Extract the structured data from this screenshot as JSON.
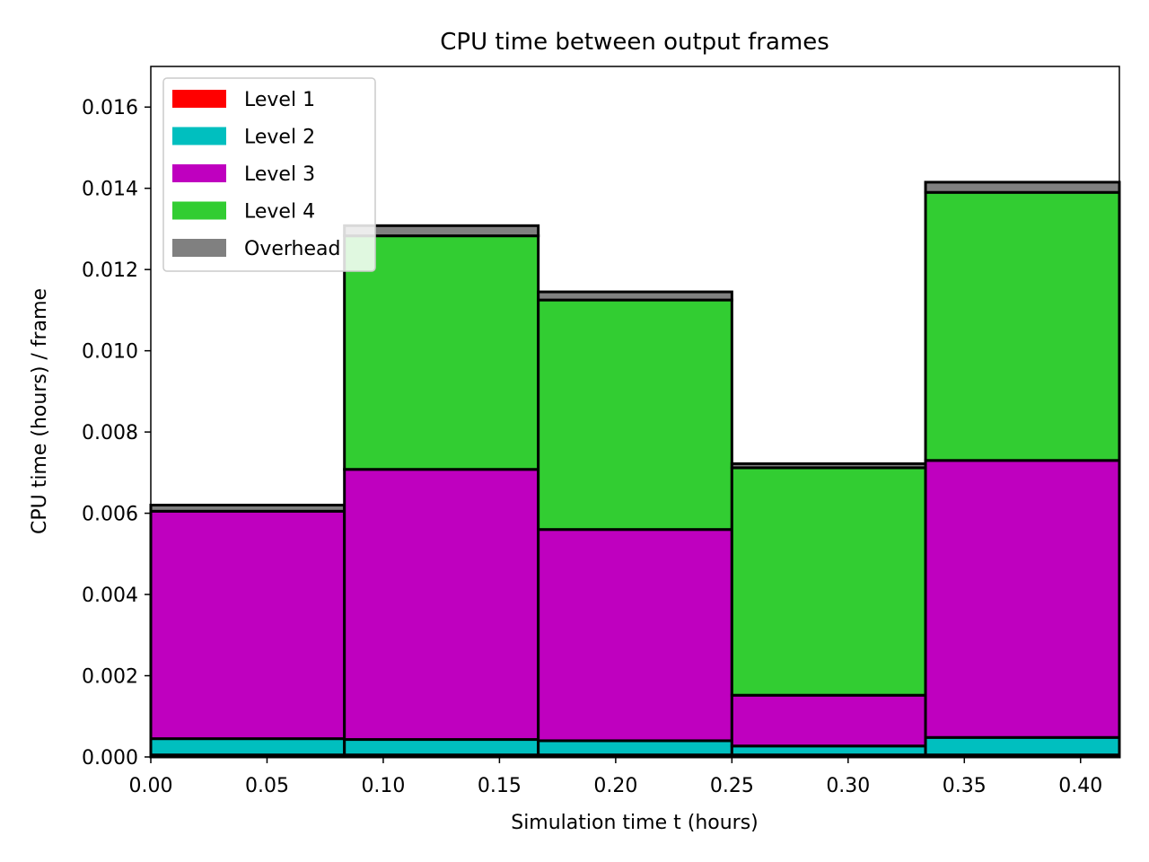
{
  "chart_data": {
    "type": "bar",
    "stacked": true,
    "title": "CPU time between output frames",
    "xlabel": "Simulation time t (hours)",
    "ylabel": "CPU time (hours) / frame",
    "xlim": [
      0.0,
      0.4167
    ],
    "ylim": [
      0.0,
      0.017
    ],
    "xticks": [
      "0.00",
      "0.05",
      "0.10",
      "0.15",
      "0.20",
      "0.25",
      "0.30",
      "0.35",
      "0.40"
    ],
    "yticks": [
      "0.000",
      "0.002",
      "0.004",
      "0.006",
      "0.008",
      "0.010",
      "0.012",
      "0.014",
      "0.016"
    ],
    "bin_edges": [
      0.0,
      0.0833,
      0.1667,
      0.25,
      0.3333,
      0.4167
    ],
    "grid": false,
    "legend_position": "upper-left",
    "series": [
      {
        "name": "Level 1",
        "color": "#ff0000",
        "values": [
          5e-05,
          5e-05,
          5e-05,
          5e-05,
          5e-05
        ]
      },
      {
        "name": "Level 2",
        "color": "#00bfbf",
        "values": [
          0.0004,
          0.00038,
          0.00035,
          0.00022,
          0.00043
        ]
      },
      {
        "name": "Level 3",
        "color": "#bf00bf",
        "values": [
          0.0056,
          0.00665,
          0.0052,
          0.00125,
          0.00682
        ]
      },
      {
        "name": "Level 4",
        "color": "#32cd32",
        "values": [
          0.0,
          0.00575,
          0.00565,
          0.0056,
          0.0066
        ]
      },
      {
        "name": "Overhead",
        "color": "#808080",
        "values": [
          0.00015,
          0.00025,
          0.0002,
          0.0001,
          0.00025
        ]
      }
    ]
  }
}
